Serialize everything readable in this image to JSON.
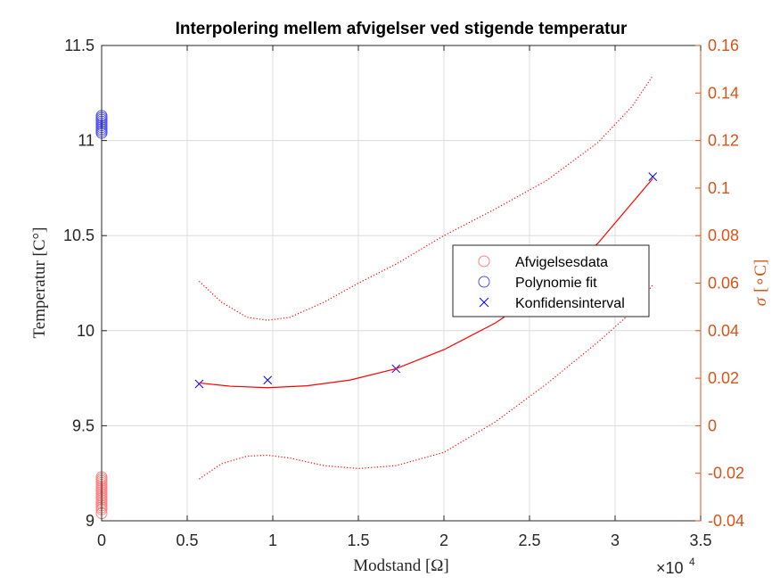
{
  "chart_data": {
    "type": "scatter",
    "title": "Interpolering mellem afvigelser ved stigende temperatur",
    "xlabel": "Modstand [Ω]",
    "ylabel": "Temperatur [C°]",
    "ylabel_right_symbol": "σ",
    "ylabel_right_unit": "[∘C]",
    "x_exponent_base": "×10",
    "x_exponent_power": "4",
    "xlim": [
      0,
      35000
    ],
    "ylim": [
      9,
      11.5
    ],
    "ylim_right": [
      -0.04,
      0.16
    ],
    "x_ticks": [
      0,
      5000,
      10000,
      15000,
      20000,
      25000,
      30000,
      35000
    ],
    "x_tick_labels": [
      "0",
      "0.5",
      "1",
      "1.5",
      "2",
      "2.5",
      "3",
      "3.5"
    ],
    "y_ticks": [
      9,
      9.5,
      10,
      10.5,
      11,
      11.5
    ],
    "y_tick_labels": [
      "9",
      "9.5",
      "10",
      "10.5",
      "11",
      "11.5"
    ],
    "y_right_ticks": [
      -0.04,
      -0.02,
      0,
      0.02,
      0.04,
      0.06,
      0.08,
      0.1,
      0.12,
      0.14,
      0.16
    ],
    "y_right_tick_labels": [
      "-0.04",
      "-0.02",
      "0",
      "0.02",
      "0.04",
      "0.06",
      "0.08",
      "0.1",
      "0.12",
      "0.14",
      "0.16"
    ],
    "grid": true,
    "legend_position": "center-right",
    "legend": [
      {
        "label": "Afvigelsesdata",
        "marker": "circle",
        "color": "#ff8080"
      },
      {
        "label": "Polynomie fit",
        "marker": "circle",
        "color": "#4d4dff"
      },
      {
        "label": "Konfidensinterval",
        "marker": "x",
        "color": "#0000ff"
      }
    ],
    "series": [
      {
        "axis": "left",
        "marker": "circle",
        "color": "#ff8080",
        "x": [
          0,
          0,
          0,
          0,
          0,
          0,
          0,
          0,
          0,
          0,
          0,
          0,
          0,
          0,
          0,
          0,
          0,
          0,
          0,
          0
        ],
        "y": [
          9.04,
          9.06,
          9.08,
          9.09,
          9.1,
          9.11,
          9.12,
          9.13,
          9.14,
          9.15,
          9.16,
          9.17,
          9.18,
          9.19,
          9.2,
          9.21,
          9.22,
          9.23,
          9.07,
          9.12
        ]
      },
      {
        "axis": "left",
        "marker": "circle",
        "color": "#4d4dff",
        "x": [
          0,
          0,
          0,
          0,
          0,
          0,
          0,
          0,
          0,
          0
        ],
        "y": [
          11.04,
          11.05,
          11.06,
          11.07,
          11.08,
          11.09,
          11.1,
          11.11,
          11.12,
          11.13
        ]
      },
      {
        "axis": "left",
        "marker": "x",
        "color": "#0000ff",
        "x": [
          5700,
          9700,
          17200,
          32200
        ],
        "y": [
          9.72,
          9.74,
          9.8,
          10.81
        ]
      },
      {
        "axis": "left",
        "line": "solid",
        "color": "#ff0000",
        "x": [
          5700,
          7500,
          9700,
          12000,
          14500,
          17200,
          20000,
          23000,
          26000,
          29000,
          32200
        ],
        "y": [
          9.725,
          9.708,
          9.7,
          9.71,
          9.74,
          9.8,
          9.9,
          10.04,
          10.22,
          10.46,
          10.8
        ]
      },
      {
        "axis": "left",
        "line": "dotted",
        "color": "#ff0000",
        "x": [
          5700,
          7000,
          8500,
          9700,
          11000,
          13000,
          15000,
          17200,
          20000,
          23000,
          26000,
          29000,
          31000,
          32200
        ],
        "y": [
          10.26,
          10.15,
          10.07,
          10.055,
          10.07,
          10.15,
          10.25,
          10.35,
          10.5,
          10.64,
          10.79,
          10.99,
          11.18,
          11.34
        ]
      },
      {
        "axis": "left",
        "line": "dotted",
        "color": "#ff0000",
        "x": [
          5700,
          7000,
          8500,
          9700,
          11000,
          13000,
          15000,
          17200,
          20000,
          23000,
          26000,
          29000,
          31000,
          32200
        ],
        "y": [
          9.22,
          9.3,
          9.34,
          9.345,
          9.33,
          9.29,
          9.275,
          9.29,
          9.36,
          9.52,
          9.72,
          9.94,
          10.1,
          10.24
        ]
      }
    ]
  }
}
